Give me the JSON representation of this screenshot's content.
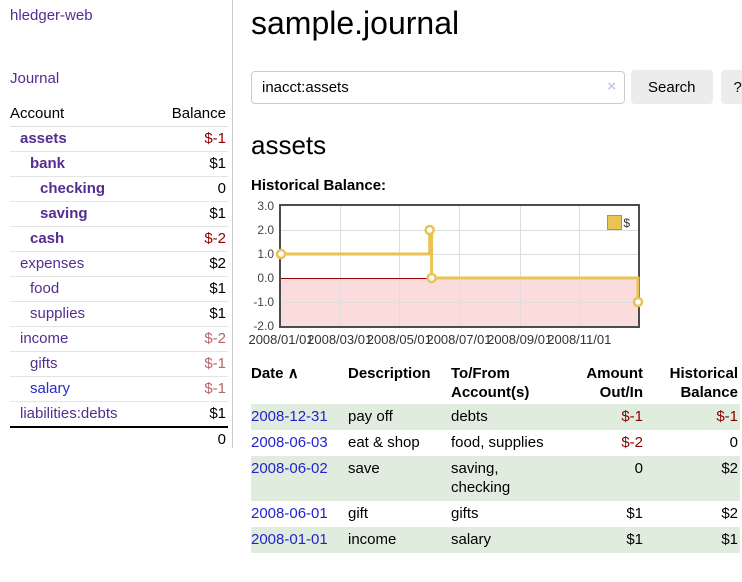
{
  "app_title": "hledger-web",
  "sidebar": {
    "journal_link": "Journal",
    "account_table": {
      "header_account": "Account",
      "header_balance": "Balance",
      "rows": [
        {
          "account": "assets",
          "balance": "$-1"
        },
        {
          "account": "bank",
          "balance": "$1"
        },
        {
          "account": "checking",
          "balance": "0"
        },
        {
          "account": "saving",
          "balance": "$1"
        },
        {
          "account": "cash",
          "balance": "$-2"
        },
        {
          "account": "expenses",
          "balance": "$2"
        },
        {
          "account": "food",
          "balance": "$1"
        },
        {
          "account": "supplies",
          "balance": "$1"
        },
        {
          "account": "income",
          "balance": "$-2"
        },
        {
          "account": "gifts",
          "balance": "$-1"
        },
        {
          "account": "salary",
          "balance": "$-1"
        },
        {
          "account": "liabilities:debts",
          "balance": "$1"
        }
      ],
      "total": "0"
    }
  },
  "main": {
    "title": "sample.journal",
    "search": {
      "value": "inacct:assets",
      "clear_icon": "×",
      "search_button": "Search",
      "help_button": "?"
    },
    "account_heading": "assets",
    "chart_title": "Historical Balance:"
  },
  "chart_data": {
    "type": "line",
    "step": "after",
    "title": "Historical Balance",
    "xlim": [
      "2008-01-01",
      "2008-12-31"
    ],
    "ylim": [
      -2,
      3
    ],
    "grid": true,
    "legend_position": "top-right",
    "legend": [
      {
        "label": "$",
        "color": "#e9c353"
      }
    ],
    "y_ticks": [
      {
        "value": 3,
        "label": "3.0"
      },
      {
        "value": 2,
        "label": "2.0"
      },
      {
        "value": 1,
        "label": "1.0"
      },
      {
        "value": 0,
        "label": "0.0"
      },
      {
        "value": -1,
        "label": "-1.0"
      },
      {
        "value": -2,
        "label": "-2.0"
      }
    ],
    "x_ticks": [
      {
        "date": "2008-01-01",
        "label": "2008/01/01"
      },
      {
        "date": "2008-03-01",
        "label": "2008/03/01"
      },
      {
        "date": "2008-05-01",
        "label": "2008/05/01"
      },
      {
        "date": "2008-07-01",
        "label": "2008/07/01"
      },
      {
        "date": "2008-09-01",
        "label": "2008/09/01"
      },
      {
        "date": "2008-11-01",
        "label": "2008/11/01"
      }
    ],
    "series": [
      {
        "name": "$",
        "color": "#e9c353",
        "points": [
          {
            "date": "2008-01-01",
            "value": 1
          },
          {
            "date": "2008-06-01",
            "value": 2
          },
          {
            "date": "2008-06-03",
            "value": 0
          },
          {
            "date": "2008-12-31",
            "value": -1
          }
        ]
      }
    ],
    "negative_region": {
      "from": 0,
      "to": -2,
      "color": "#fadcdc",
      "zero_line_color": "#9c0000"
    }
  },
  "register": {
    "sort_icon": "∧",
    "headers": {
      "date": "Date",
      "description": "Description",
      "accounts": "To/From Account(s)",
      "amount": "Amount Out/In",
      "balance": "Historical Balance"
    },
    "rows": [
      {
        "date": "2008-12-31",
        "description": "pay off",
        "accounts": "debts",
        "amount": "$-1",
        "balance": "$-1"
      },
      {
        "date": "2008-06-03",
        "description": "eat & shop",
        "accounts": "food, supplies",
        "amount": "$-2",
        "balance": "0"
      },
      {
        "date": "2008-06-02",
        "description": "save",
        "accounts": "saving,\nchecking",
        "amount": "0",
        "balance": "$2"
      },
      {
        "date": "2008-06-01",
        "description": "gift",
        "accounts": "gifts",
        "amount": "$1",
        "balance": "$2"
      },
      {
        "date": "2008-01-01",
        "description": "income",
        "accounts": "salary",
        "amount": "$1",
        "balance": "$1"
      }
    ]
  }
}
